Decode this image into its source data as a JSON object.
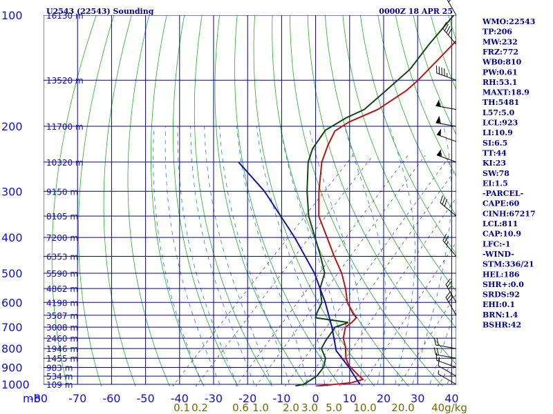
{
  "header": {
    "station": "U2543 (22543) Sounding",
    "time": "0000Z 18 APR 25"
  },
  "colors": {
    "isobar": "#00008b",
    "isotherm": "#00008b",
    "dry_adiabat": "#22aa22",
    "moist_adiabat": "#2277dd",
    "mixing_ratio": "#555555",
    "temperature": "#bb1111",
    "dewpoint": "#114411",
    "parcel": "#1111aa",
    "wind": "#000000",
    "text": "#00008b"
  },
  "axes": {
    "pressure_ticks": [
      100,
      200,
      300,
      400,
      500,
      600,
      700,
      800,
      900,
      1000
    ],
    "temp_ticks": [
      -80,
      -70,
      -60,
      -50,
      -40,
      -30,
      -20,
      -10,
      0,
      10,
      20,
      30,
      40
    ],
    "temp_unit_prefix": "mb",
    "mixing_ratio_labels": [
      "0.1",
      "0.2",
      "0.6",
      "1.0",
      "2.0",
      "3.0",
      "5.0",
      "10.0",
      "20.0",
      "40g/kg"
    ],
    "height_labels": [
      {
        "p": 100,
        "text": "16130 m"
      },
      {
        "p": 150,
        "text": "13520 m"
      },
      {
        "p": 200,
        "text": "11700 m"
      },
      {
        "p": 250,
        "text": "10320 m"
      },
      {
        "p": 300,
        "text": "9150 m"
      },
      {
        "p": 350,
        "text": "8105 m"
      },
      {
        "p": 400,
        "text": "7200 m"
      },
      {
        "p": 450,
        "text": "6353 m"
      },
      {
        "p": 500,
        "text": "5590 m"
      },
      {
        "p": 550,
        "text": "4862 m"
      },
      {
        "p": 600,
        "text": "4198 m"
      },
      {
        "p": 650,
        "text": "3587 m"
      },
      {
        "p": 700,
        "text": "3008 m"
      },
      {
        "p": 750,
        "text": "2460 m"
      },
      {
        "p": 800,
        "text": "1946 m"
      },
      {
        "p": 850,
        "text": "1455 m"
      },
      {
        "p": 900,
        "text": "983 m"
      },
      {
        "p": 950,
        "text": "534 m"
      },
      {
        "p": 1000,
        "text": "109 m"
      }
    ]
  },
  "stats": [
    "WMO:22543",
    "TP:206",
    "MW:232",
    "FRZ:772",
    "WB0:810",
    "PW:0.61",
    "RH:53.1",
    "MAXT:18.9",
    "TH:5481",
    "L57:5.0",
    "LCL:923",
    "LI:10.9",
    "SI:6.5",
    "TT:44",
    "KI:23",
    "SW:78",
    "EI:1.5",
    "-PARCEL-",
    "CAPE:60",
    "CINH:67217",
    "LCL:811",
    "CAP:10.9",
    "LFC:-1",
    "-WIND-",
    "STM:336/21",
    "HEL:186",
    "SHR+:0.0",
    "SRDS:92",
    "EHI:0.1",
    "BRN:1.4",
    "BSHR:42"
  ],
  "chart_data": {
    "type": "line",
    "title": "U2543 (22543) Sounding",
    "subtitle": "0000Z 18 APR 25",
    "xlabel": "",
    "ylabel": "",
    "ylim": [
      1000,
      100
    ],
    "xlim": [
      -80,
      40
    ],
    "log_y": true,
    "grid": true,
    "series": [
      {
        "key": "temperature",
        "points": [
          {
            "p": 1012,
            "t": 0.5
          },
          {
            "p": 990,
            "t": 10.0
          },
          {
            "p": 970,
            "t": 12.5
          },
          {
            "p": 940,
            "t": 9.5
          },
          {
            "p": 890,
            "t": 4.5
          },
          {
            "p": 850,
            "t": 1.5
          },
          {
            "p": 790,
            "t": -2.0
          },
          {
            "p": 750,
            "t": -5.0
          },
          {
            "p": 700,
            "t": -7.5
          },
          {
            "p": 680,
            "t": -7.0
          },
          {
            "p": 660,
            "t": -7.0
          },
          {
            "p": 640,
            "t": -9.5
          },
          {
            "p": 600,
            "t": -14.0
          },
          {
            "p": 550,
            "t": -18.5
          },
          {
            "p": 500,
            "t": -24.0
          },
          {
            "p": 450,
            "t": -31.0
          },
          {
            "p": 400,
            "t": -38.5
          },
          {
            "p": 350,
            "t": -47.0
          },
          {
            "p": 300,
            "t": -54.0
          },
          {
            "p": 250,
            "t": -61.5
          },
          {
            "p": 225,
            "t": -64.5
          },
          {
            "p": 206,
            "t": -66.5
          },
          {
            "p": 195,
            "t": -65.0
          },
          {
            "p": 180,
            "t": -60.0
          },
          {
            "p": 160,
            "t": -57.0
          },
          {
            "p": 150,
            "t": -56.5
          },
          {
            "p": 100,
            "t": -56.5
          }
        ]
      },
      {
        "key": "dewpoint",
        "points": [
          {
            "p": 1010,
            "t": -5.5
          },
          {
            "p": 1000,
            "t": -3.5
          },
          {
            "p": 950,
            "t": -2.0
          },
          {
            "p": 900,
            "t": -2.5
          },
          {
            "p": 850,
            "t": -4.5
          },
          {
            "p": 800,
            "t": -8.5
          },
          {
            "p": 760,
            "t": -9.5
          },
          {
            "p": 700,
            "t": -10.5
          },
          {
            "p": 680,
            "t": -8.0
          },
          {
            "p": 660,
            "t": -19.0
          },
          {
            "p": 640,
            "t": -20.0
          },
          {
            "p": 600,
            "t": -21.5
          },
          {
            "p": 550,
            "t": -26.0
          },
          {
            "p": 500,
            "t": -29.0
          },
          {
            "p": 450,
            "t": -35.0
          },
          {
            "p": 400,
            "t": -42.0
          },
          {
            "p": 350,
            "t": -50.0
          },
          {
            "p": 300,
            "t": -57.5
          },
          {
            "p": 250,
            "t": -65.5
          },
          {
            "p": 230,
            "t": -68.0
          },
          {
            "p": 205,
            "t": -69.5
          },
          {
            "p": 190,
            "t": -67.0
          },
          {
            "p": 180,
            "t": -64.0
          },
          {
            "p": 160,
            "t": -63.0
          },
          {
            "p": 140,
            "t": -62.0
          },
          {
            "p": 120,
            "t": -63.5
          },
          {
            "p": 100,
            "t": -64.5
          }
        ]
      },
      {
        "key": "parcel",
        "points": [
          {
            "p": 1000,
            "t": 13.0
          },
          {
            "p": 900,
            "t": 5.0
          },
          {
            "p": 811,
            "t": -3.5
          },
          {
            "p": 700,
            "t": -11.5
          },
          {
            "p": 600,
            "t": -20.5
          },
          {
            "p": 500,
            "t": -32.0
          },
          {
            "p": 400,
            "t": -48.0
          },
          {
            "p": 300,
            "t": -70.0
          },
          {
            "p": 250,
            "t": -86.0
          }
        ]
      }
    ],
    "mixing_ratio_values": [
      0.1,
      0.2,
      0.6,
      1.0,
      2.0,
      3.0,
      5.0,
      10.0,
      20.0,
      40.0
    ],
    "wind_barbs": [
      {
        "p": 1000,
        "dir": 300,
        "spd": 5
      },
      {
        "p": 950,
        "dir": 300,
        "spd": 10
      },
      {
        "p": 900,
        "dir": 290,
        "spd": 15
      },
      {
        "p": 850,
        "dir": 280,
        "spd": 20
      },
      {
        "p": 800,
        "dir": 280,
        "spd": 20
      },
      {
        "p": 650,
        "dir": 330,
        "spd": 30
      },
      {
        "p": 600,
        "dir": 330,
        "spd": 25
      },
      {
        "p": 450,
        "dir": 320,
        "spd": 25
      },
      {
        "p": 350,
        "dir": 310,
        "spd": 30
      },
      {
        "p": 250,
        "dir": 290,
        "spd": 55
      },
      {
        "p": 220,
        "dir": 290,
        "spd": 50
      },
      {
        "p": 200,
        "dir": 280,
        "spd": 60
      },
      {
        "p": 180,
        "dir": 280,
        "spd": 55
      },
      {
        "p": 150,
        "dir": 290,
        "spd": 45
      },
      {
        "p": 120,
        "dir": 320,
        "spd": 40
      },
      {
        "p": 100,
        "dir": 330,
        "spd": 25
      }
    ]
  }
}
